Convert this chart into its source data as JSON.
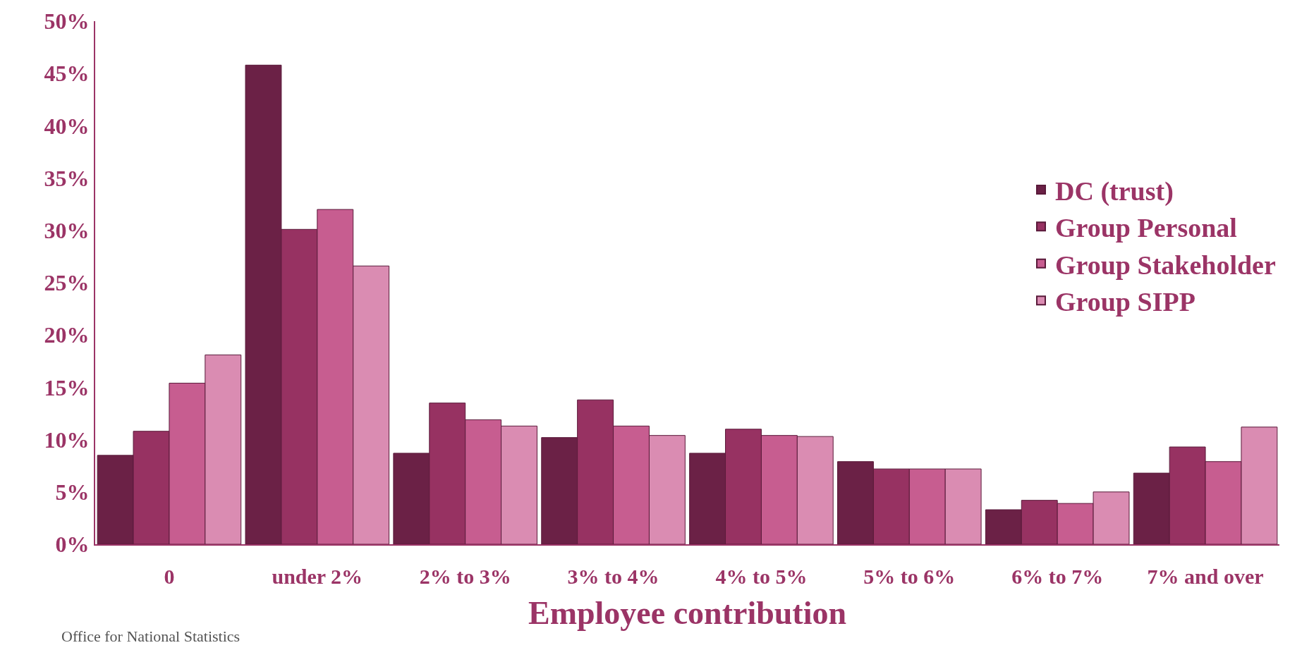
{
  "chart_data": {
    "type": "bar",
    "categories": [
      "0",
      "under 2%",
      "2% to 3%",
      "3% to 4%",
      "4% to 5%",
      "5% to 6%",
      "6% to 7%",
      "7% and over"
    ],
    "series": [
      {
        "name": "DC (trust)",
        "color": "#6b2146",
        "values": [
          8.5,
          45.8,
          8.7,
          10.2,
          8.7,
          7.9,
          3.3,
          6.8
        ]
      },
      {
        "name": "Group Personal",
        "color": "#973262",
        "values": [
          10.8,
          30.1,
          13.5,
          13.8,
          11.0,
          7.2,
          4.2,
          9.3
        ]
      },
      {
        "name": "Group Stakeholder",
        "color": "#c75d90",
        "values": [
          15.4,
          32.0,
          11.9,
          11.3,
          10.4,
          7.2,
          3.9,
          7.9
        ]
      },
      {
        "name": "Group SIPP",
        "color": "#da8cb2",
        "values": [
          18.1,
          26.6,
          11.3,
          10.4,
          10.3,
          7.2,
          5.0,
          11.2
        ]
      }
    ],
    "xlabel": "Employee contribution",
    "ylim": [
      0,
      50
    ],
    "yticks": [
      {
        "value": 0,
        "label": "0%"
      },
      {
        "value": 5,
        "label": "5%"
      },
      {
        "value": 10,
        "label": "10%"
      },
      {
        "value": 15,
        "label": "15%"
      },
      {
        "value": 20,
        "label": "20%"
      },
      {
        "value": 25,
        "label": "25%"
      },
      {
        "value": 30,
        "label": "30%"
      },
      {
        "value": 35,
        "label": "35%"
      },
      {
        "value": 40,
        "label": "40%"
      },
      {
        "value": 45,
        "label": "45%"
      },
      {
        "value": 50,
        "label": "50%"
      }
    ],
    "legend": "right",
    "annotations": [
      "Office for National Statistics"
    ]
  }
}
